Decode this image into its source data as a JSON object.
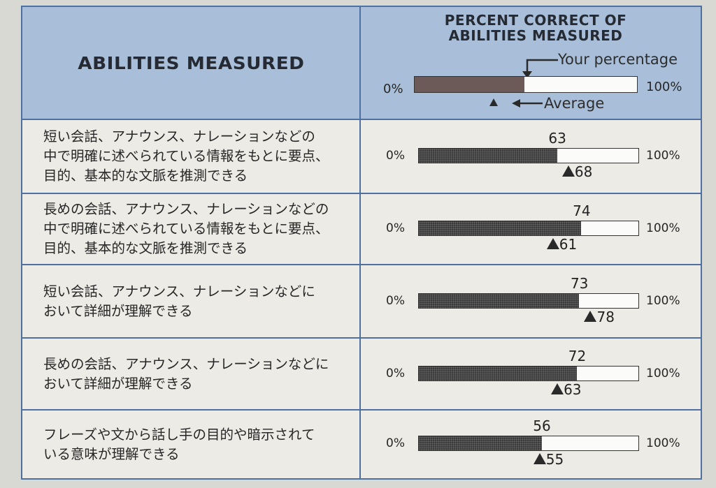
{
  "header": {
    "abilities_title": "ABILITIES MEASURED",
    "percent_title_line1": "PERCENT CORRECT OF",
    "percent_title_line2": "ABILITIES MEASURED",
    "legend": {
      "your_percentage_label": "Your percentage",
      "average_label": "Average",
      "min_label": "0%",
      "max_label": "100%"
    }
  },
  "chart_data": {
    "type": "bar",
    "categories": [
      "短い会話、アナウンス、ナレーションなどの\n中で明確に述べられている情報をもとに要点、\n目的、基本的な文脈を推測できる",
      "長めの会話、アナウンス、ナレーションなどの\n中で明確に述べられている情報をもとに要点、\n目的、基本的な文脈を推測できる",
      "短い会話、アナウンス、ナレーションなどに\nおいて詳細が理解できる",
      "長めの会話、アナウンス、ナレーションなどに\nおいて詳細が理解できる",
      "フレーズや文から話し手の目的や暗示されて\nいる意味が理解できる"
    ],
    "series": [
      {
        "name": "Your percentage",
        "values": [
          63,
          74,
          73,
          72,
          56
        ]
      },
      {
        "name": "Average",
        "values": [
          68,
          61,
          78,
          63,
          55
        ]
      }
    ],
    "ylim": [
      0,
      100
    ],
    "min_label": "0%",
    "max_label": "100%"
  }
}
